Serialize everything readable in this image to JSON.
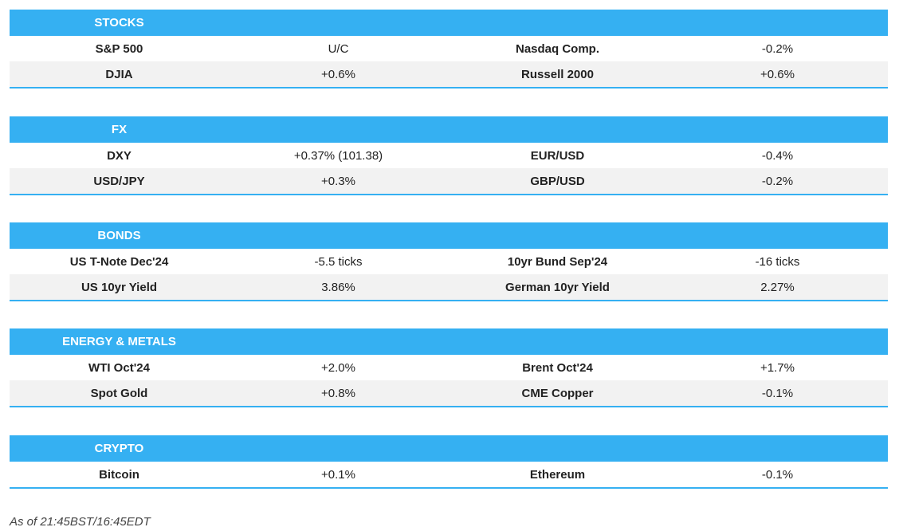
{
  "sections": [
    {
      "title": "STOCKS",
      "rows": [
        [
          "S&P 500",
          "U/C",
          "Nasdaq Comp.",
          "-0.2%"
        ],
        [
          "DJIA",
          "+0.6%",
          "Russell 2000",
          "+0.6%"
        ]
      ]
    },
    {
      "title": "FX",
      "rows": [
        [
          "DXY",
          "+0.37% (101.38)",
          "EUR/USD",
          "-0.4%"
        ],
        [
          "USD/JPY",
          "+0.3%",
          "GBP/USD",
          "-0.2%"
        ]
      ]
    },
    {
      "title": "BONDS",
      "rows": [
        [
          "US T-Note Dec'24",
          "-5.5 ticks",
          "10yr Bund Sep'24",
          "-16 ticks"
        ],
        [
          "US 10yr Yield",
          "3.86%",
          "German 10yr Yield",
          "2.27%"
        ]
      ]
    },
    {
      "title": "ENERGY & METALS",
      "rows": [
        [
          "WTI Oct'24",
          "+2.0%",
          "Brent Oct'24",
          "+1.7%"
        ],
        [
          "Spot Gold",
          "+0.8%",
          "CME Copper",
          "-0.1%"
        ]
      ]
    },
    {
      "title": "CRYPTO",
      "rows": [
        [
          "Bitcoin",
          "+0.1%",
          "Ethereum",
          "-0.1%"
        ]
      ]
    }
  ],
  "footer": "As of 21:45BST/16:45EDT",
  "colors": {
    "header": "#35b0f2",
    "alt_row": "#f2f2f2"
  }
}
